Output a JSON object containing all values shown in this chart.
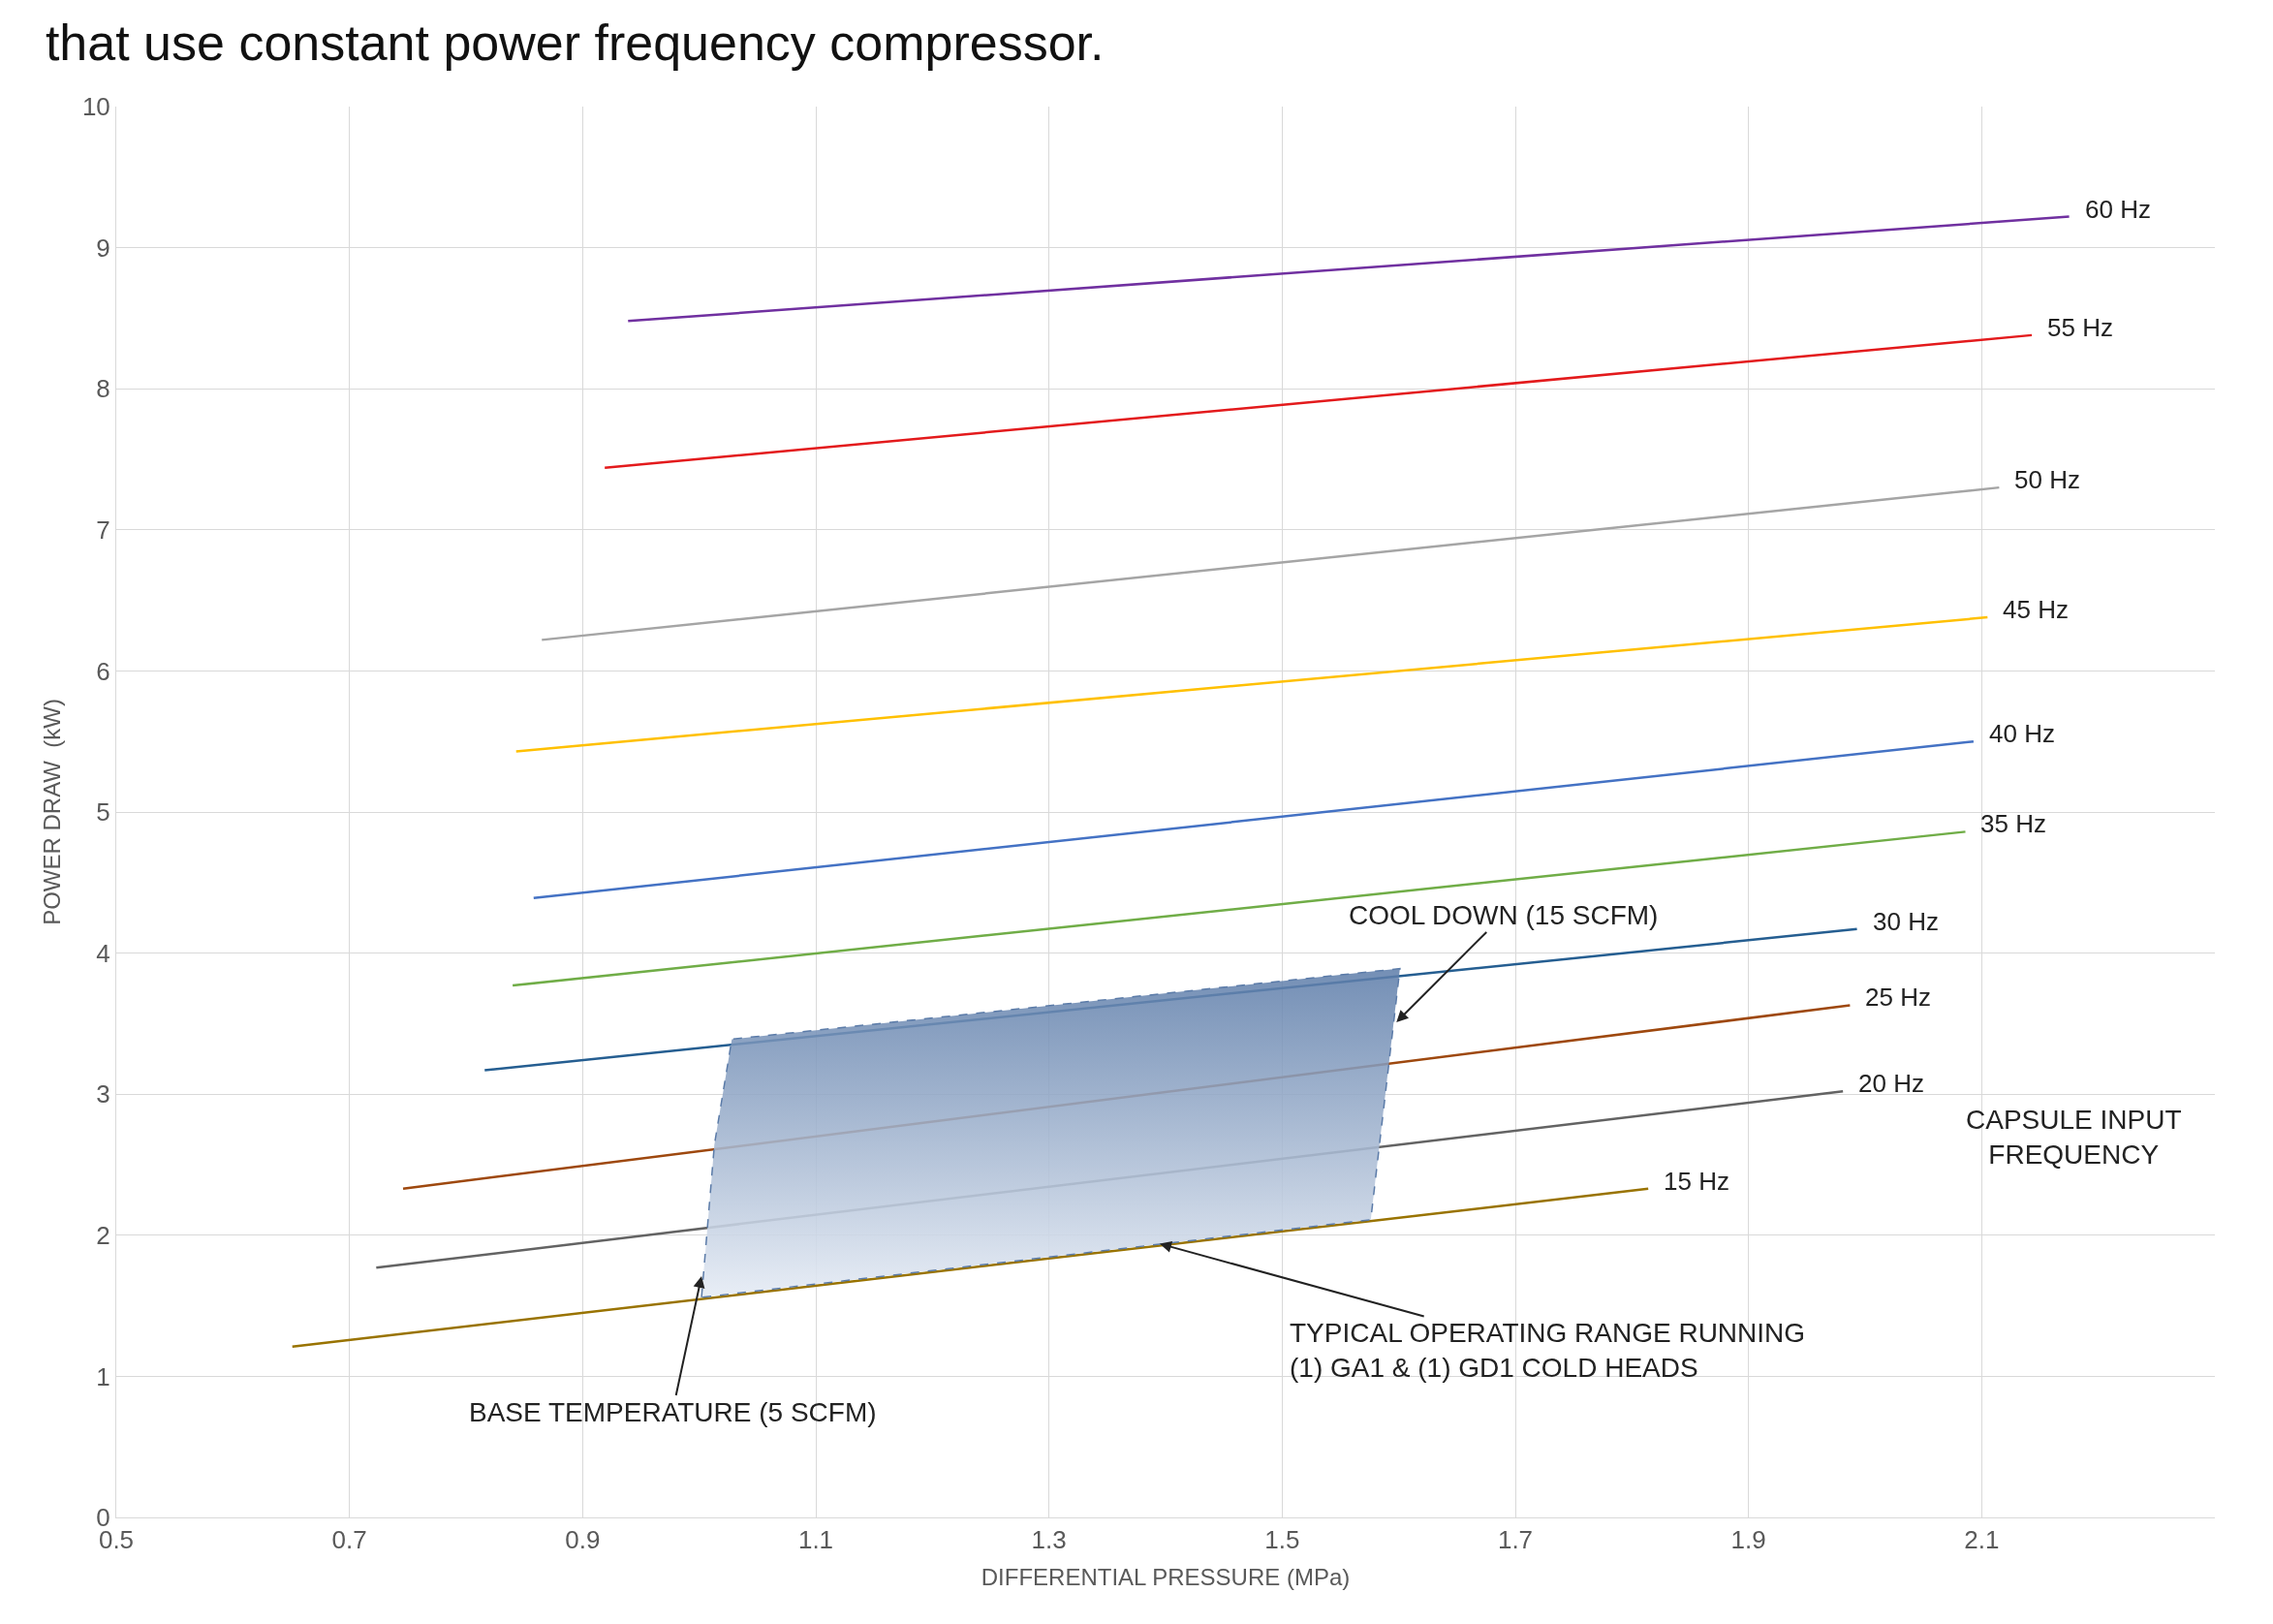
{
  "chart_data": {
    "type": "line",
    "title": "that use constant power frequency compressor.",
    "xlabel": "DIFFERENTIAL PRESSURE (MPa)",
    "ylabel": "POWER DRAW  (kW)",
    "xlim": [
      0.5,
      2.3
    ],
    "xticks": [
      0.5,
      0.7,
      0.9,
      1.1,
      1.3,
      1.5,
      1.7,
      1.9,
      2.1
    ],
    "ylim": [
      0,
      10
    ],
    "yticks": [
      0,
      1,
      2,
      3,
      4,
      5,
      6,
      7,
      8,
      9,
      10
    ],
    "grid": true,
    "legend": false,
    "marker": "none",
    "series": [
      {
        "name": "60 Hz",
        "color": "#7030a0",
        "x": [
          0.939,
          2.175
        ],
        "values": [
          8.48,
          9.22
        ]
      },
      {
        "name": "55 Hz",
        "color": "#e31a1c",
        "x": [
          0.919,
          2.143
        ],
        "values": [
          7.44,
          8.38
        ]
      },
      {
        "name": "50 Hz",
        "color": "#a5a5a5",
        "x": [
          0.865,
          2.115
        ],
        "values": [
          6.22,
          7.3
        ]
      },
      {
        "name": "45 Hz",
        "color": "#ffc000",
        "x": [
          0.843,
          2.105
        ],
        "values": [
          5.43,
          6.38
        ]
      },
      {
        "name": "40 Hz",
        "color": "#4472c4",
        "x": [
          0.858,
          2.093
        ],
        "values": [
          4.39,
          5.5
        ]
      },
      {
        "name": "35 Hz",
        "color": "#70ad47",
        "x": [
          0.84,
          2.086
        ],
        "values": [
          3.77,
          4.86
        ]
      },
      {
        "name": "30 Hz",
        "color": "#255e91",
        "x": [
          0.816,
          1.993
        ],
        "values": [
          3.17,
          4.17
        ]
      },
      {
        "name": "25 Hz",
        "color": "#9e480e",
        "x": [
          0.746,
          1.987
        ],
        "values": [
          2.33,
          3.63
        ]
      },
      {
        "name": "20 Hz",
        "color": "#636363",
        "x": [
          0.723,
          1.981
        ],
        "values": [
          1.77,
          3.02
        ]
      },
      {
        "name": "15 Hz",
        "color": "#997300",
        "x": [
          0.651,
          1.814
        ],
        "values": [
          1.21,
          2.33
        ]
      },
      {
        "type": "area",
        "color": "#5b7ba8",
        "line_style": "dashed",
        "x": [
          1.002,
          1.013,
          1.028,
          1.601,
          1.576,
          1.002
        ],
        "values": [
          1.56,
          2.64,
          3.39,
          3.89,
          2.11,
          1.56
        ]
      }
    ],
    "annotations": [
      {
        "text": "COOL DOWN (15 SCFM)",
        "x": 1.598,
        "y": 3.51
      },
      {
        "text": "BASE TEMPERATURE (5 SCFM)",
        "x": 1.002,
        "y": 1.71
      },
      {
        "text": "TYPICAL OPERATING RANGE RUNNING\n(1) GA1 & (1) GD1 COLD HEADS",
        "x": 1.395,
        "y": 1.94
      },
      "CAPSULE INPUT\nFREQUENCY"
    ]
  }
}
